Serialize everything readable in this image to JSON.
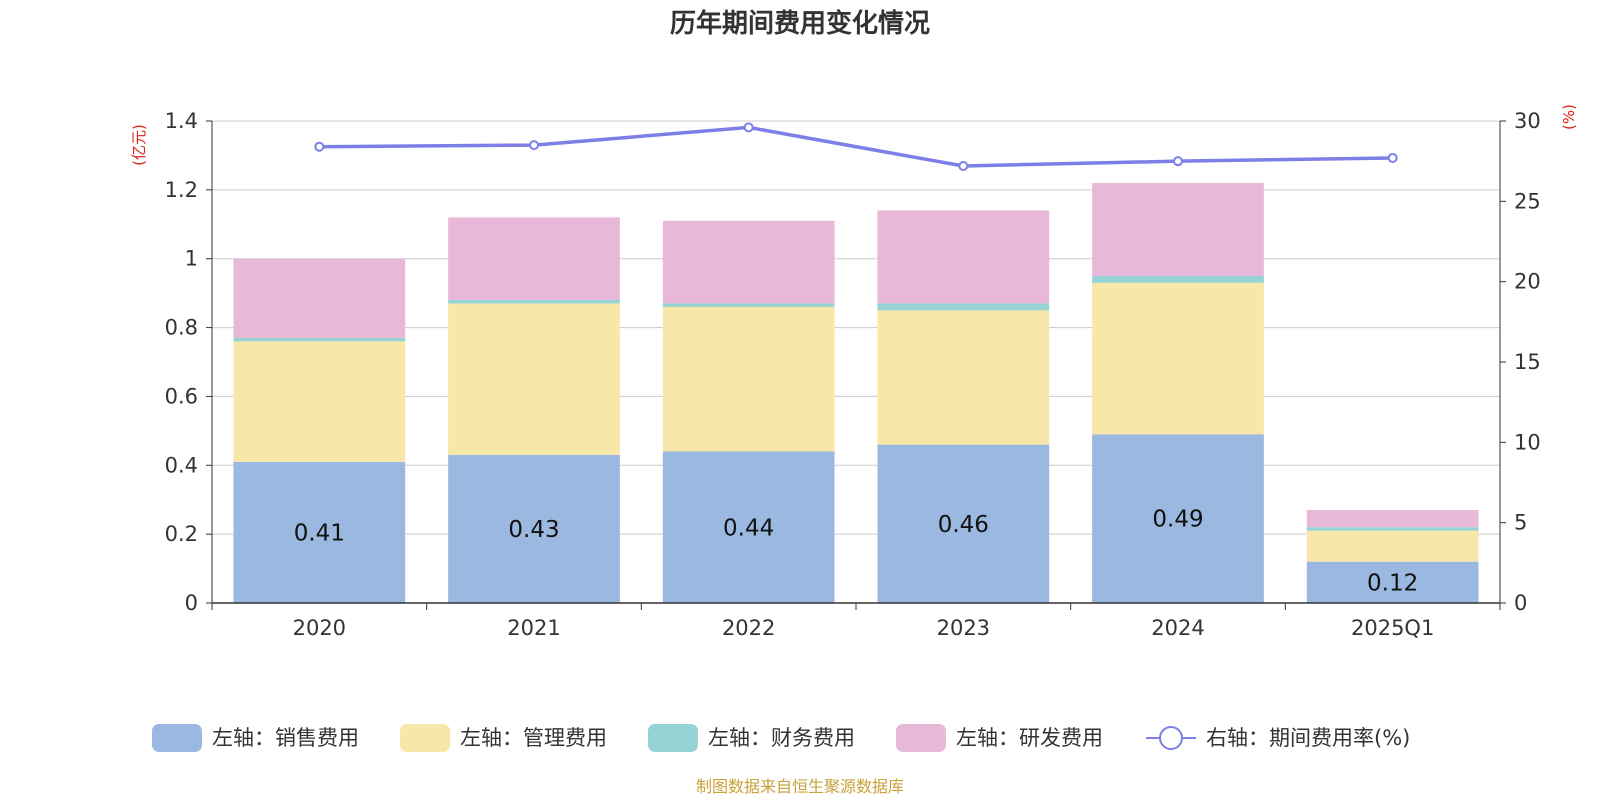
{
  "title": "历年期间费用变化情况",
  "left_unit": "(亿元)",
  "right_unit": "(%)",
  "source": "制图数据来自恒生聚源数据库",
  "chart_data": {
    "type": "bar",
    "stacked": true,
    "categories": [
      "2020",
      "2021",
      "2022",
      "2023",
      "2024",
      "2025Q1"
    ],
    "series": [
      {
        "name": "左轴：销售费用",
        "axis": "left",
        "color": "#9bb8e0",
        "values": [
          0.41,
          0.43,
          0.44,
          0.46,
          0.49,
          0.12
        ],
        "labels": [
          "0.41",
          "0.43",
          "0.44",
          "0.46",
          "0.49",
          "0.12"
        ]
      },
      {
        "name": "左轴：管理费用",
        "axis": "left",
        "color": "#f7e7a9",
        "values": [
          0.35,
          0.44,
          0.42,
          0.39,
          0.44,
          0.09
        ]
      },
      {
        "name": "左轴：财务费用",
        "axis": "left",
        "color": "#96d3d4",
        "values": [
          0.01,
          0.01,
          0.01,
          0.02,
          0.02,
          0.01
        ]
      },
      {
        "name": "左轴：研发费用",
        "axis": "left",
        "color": "#e8b8d8",
        "values": [
          0.23,
          0.24,
          0.24,
          0.27,
          0.27,
          0.05
        ]
      },
      {
        "name": "右轴：期间费用率(%)",
        "axis": "right",
        "type": "line",
        "color": "#7b7fe6",
        "values": [
          28.4,
          28.5,
          29.6,
          27.2,
          27.5,
          27.7
        ]
      }
    ],
    "y_left": {
      "min": 0,
      "max": 1.4,
      "ticks": [
        "0",
        "0.2",
        "0.4",
        "0.6",
        "0.8",
        "1",
        "1.2",
        "1.4"
      ]
    },
    "y_right": {
      "min": 0,
      "max": 30,
      "ticks": [
        "0",
        "5",
        "10",
        "15",
        "20",
        "25",
        "30"
      ]
    },
    "grid": true,
    "legend_position": "bottom"
  }
}
